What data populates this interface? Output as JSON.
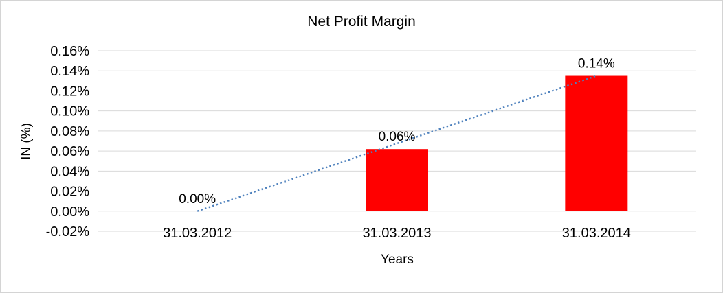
{
  "chart_data": {
    "type": "bar",
    "title": "Net Profit Margin",
    "xlabel": "Years",
    "ylabel": "IN (%)",
    "categories": [
      "31.03.2012",
      "31.03.2013",
      "31.03.2014"
    ],
    "series": [
      {
        "name": "Net Profit Margin",
        "color": "#FF0000",
        "values_percent": [
          0.0,
          0.062,
          0.135
        ],
        "data_labels": [
          "0.00%",
          "0.06%",
          "0.14%"
        ]
      }
    ],
    "trendline": {
      "type": "linear",
      "style": "dotted",
      "color": "#4E81BD",
      "start_percent": 0.0,
      "end_percent": 0.135
    },
    "y_axis": {
      "min": -0.02,
      "max": 0.16,
      "step": 0.02,
      "tick_labels": [
        "0.16%",
        "0.14%",
        "0.12%",
        "0.10%",
        "0.08%",
        "0.06%",
        "0.04%",
        "0.02%",
        "0.00%",
        "-0.02%"
      ]
    },
    "ylim": [
      -0.02,
      0.16
    ],
    "grid": true,
    "legend": "none",
    "colors": {
      "bar": "#FF0000",
      "trendline": "#4E81BD",
      "gridline": "#D9D9D9",
      "text": "#000000",
      "background": "#FFFFFF",
      "frame_border": "#D4D4D4"
    }
  }
}
